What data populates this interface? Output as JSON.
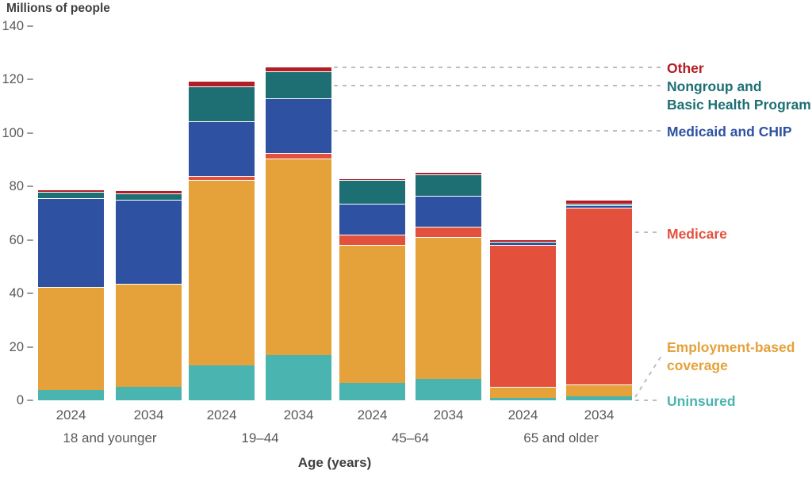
{
  "header": {
    "y_axis_title": "Millions of people"
  },
  "x_axis": {
    "title": "Age (years)",
    "group_labels": [
      "18 and younger",
      "19–44",
      "45–64",
      "65 and older"
    ]
  },
  "y_axis": {
    "ticks": [
      0,
      20,
      40,
      60,
      80,
      100,
      120,
      140
    ]
  },
  "legend": [
    {
      "id": "other",
      "label": "Other",
      "color": "#b21e25"
    },
    {
      "id": "nongroup",
      "label": "Nongroup and\nBasic Health Program",
      "color": "#1e6f74"
    },
    {
      "id": "medicaid",
      "label": "Medicaid and CHIP",
      "color": "#2e51a2"
    },
    {
      "id": "medicare",
      "label": "Medicare",
      "color": "#e3513d"
    },
    {
      "id": "employment",
      "label": "Employment-based\ncoverage",
      "color": "#e5a13a"
    },
    {
      "id": "uninsured",
      "label": "Uninsured",
      "color": "#4ab4b0"
    }
  ],
  "chart_data": {
    "type": "bar",
    "stacked": true,
    "title": "",
    "ylabel": "Millions of people",
    "xlabel": "Age (years)",
    "ylim": [
      0,
      140
    ],
    "grid": false,
    "legend_position": "right",
    "groups": [
      "18 and younger",
      "19–44",
      "45–64",
      "65 and older"
    ],
    "categories": [
      {
        "group": "18 and younger",
        "year": "2024"
      },
      {
        "group": "18 and younger",
        "year": "2034"
      },
      {
        "group": "19–44",
        "year": "2024"
      },
      {
        "group": "19–44",
        "year": "2034"
      },
      {
        "group": "45–64",
        "year": "2024"
      },
      {
        "group": "45–64",
        "year": "2034"
      },
      {
        "group": "65 and older",
        "year": "2024"
      },
      {
        "group": "65 and older",
        "year": "2034"
      }
    ],
    "series": [
      {
        "key": "uninsured",
        "name": "Uninsured",
        "color": "#4ab4b0",
        "values": [
          4,
          5,
          13,
          17,
          6.5,
          8,
          1,
          1.5
        ]
      },
      {
        "key": "employment",
        "name": "Employment-based coverage",
        "color": "#e5a13a",
        "values": [
          38.5,
          38.5,
          69.5,
          73.5,
          51.5,
          53,
          4,
          4.5
        ]
      },
      {
        "key": "medicare",
        "name": "Medicare",
        "color": "#e3513d",
        "values": [
          0,
          0,
          1.5,
          2,
          4,
          4,
          53,
          66
        ]
      },
      {
        "key": "medicaid",
        "name": "Medicaid and CHIP",
        "color": "#2e51a2",
        "values": [
          33,
          31.5,
          20.5,
          20.5,
          11.5,
          11.5,
          1,
          1
        ]
      },
      {
        "key": "nongroup",
        "name": "Nongroup and Basic Health Program",
        "color": "#1e6f74",
        "values": [
          2.5,
          2.5,
          13,
          10,
          9,
          8,
          0.3,
          0.5
        ]
      },
      {
        "key": "other",
        "name": "Other",
        "color": "#b21e25",
        "values": [
          1,
          1,
          2,
          2,
          0.5,
          1,
          1,
          1.5
        ]
      }
    ],
    "approx_totals": [
      79,
      78.5,
      119.5,
      125,
      83,
      85.5,
      60.3,
      75
    ]
  }
}
